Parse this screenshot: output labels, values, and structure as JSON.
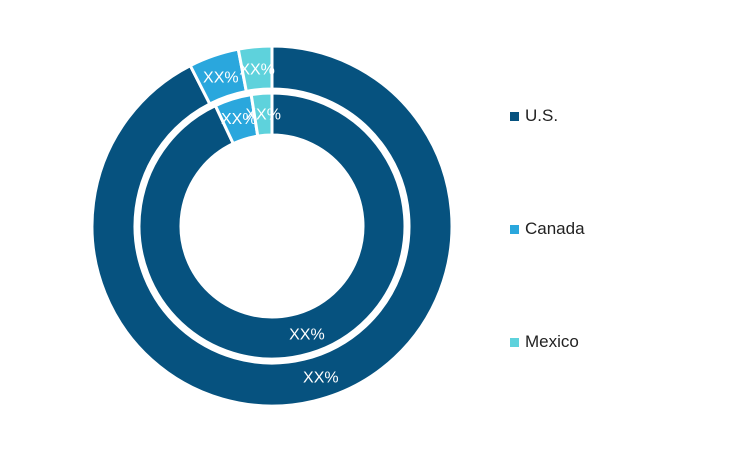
{
  "chart_data": {
    "type": "pie",
    "variant": "double-donut",
    "categories": [
      "U.S.",
      "Canada",
      "Mexico"
    ],
    "colors": [
      "#06527f",
      "#2aa7dd",
      "#5ed2dc"
    ],
    "series": [
      {
        "ring": "outer",
        "values": [
          92.5,
          4.5,
          3.0
        ],
        "labels": [
          "XX%",
          "XX%",
          "XX%"
        ]
      },
      {
        "ring": "inner",
        "values": [
          93.0,
          4.5,
          2.5
        ],
        "labels": [
          "XX%",
          "XX%",
          "XX%"
        ]
      }
    ],
    "legend": {
      "position": "right",
      "items": [
        "U.S.",
        "Canada",
        "Mexico"
      ]
    }
  }
}
